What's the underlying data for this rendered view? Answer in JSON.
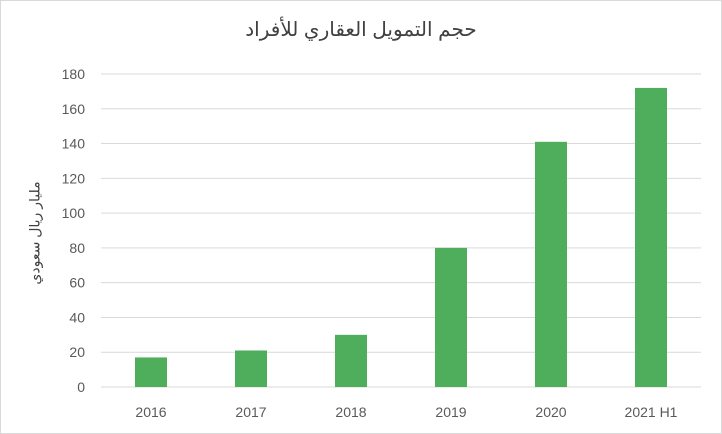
{
  "chart_data": {
    "type": "bar",
    "title": "حجم التمويل العقاري للأفراد",
    "xlabel": "",
    "ylabel": "مليار ريال سعودي",
    "categories": [
      "2016",
      "2017",
      "2018",
      "2019",
      "2020",
      "2021 H1"
    ],
    "values": [
      17,
      21,
      30,
      80,
      141,
      172
    ],
    "ylim": [
      0,
      180
    ],
    "yticks": [
      0,
      20,
      40,
      60,
      80,
      100,
      120,
      140,
      160,
      180
    ],
    "grid": true,
    "legend": "none",
    "bar_color": "#4eae5b",
    "grid_color": "#d9d9d9",
    "text_color": "#595959"
  }
}
